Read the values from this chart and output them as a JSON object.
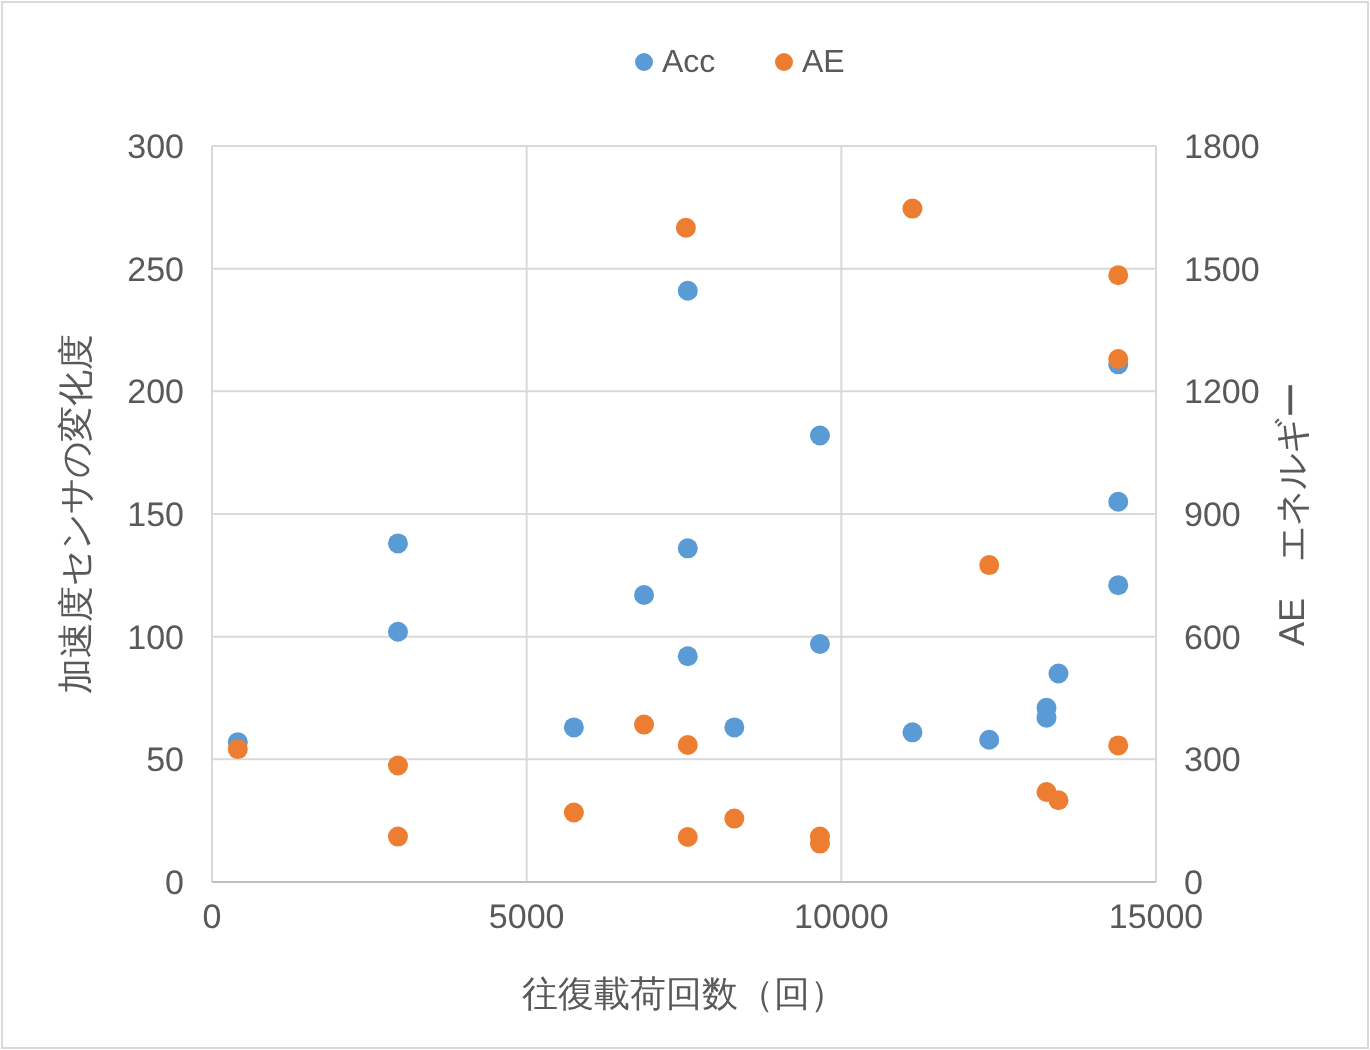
{
  "chart_data": {
    "type": "scatter",
    "xlabel": "往復載荷回数（回）",
    "ylabel": "加速度センサの変化度",
    "y2label": "AE　エネルギー",
    "xlim": [
      0,
      15000
    ],
    "xticks": [
      0,
      5000,
      10000,
      15000
    ],
    "ylim": [
      0,
      300
    ],
    "yticks": [
      0,
      50,
      100,
      150,
      200,
      250,
      300
    ],
    "y2lim": [
      0,
      1800
    ],
    "y2ticks": [
      0,
      300,
      600,
      900,
      1200,
      1500,
      1800
    ],
    "grid": true,
    "legend": "top",
    "marker": "circle",
    "series": [
      {
        "name": "Acc",
        "color": "#5b9bd5",
        "x": [
          410,
          2955,
          2955,
          5750,
          6865,
          7560,
          7560,
          7560,
          8300,
          9660,
          9660,
          11130,
          12350,
          13260,
          13260,
          13450,
          14400,
          14400,
          14400
        ],
        "values": [
          57,
          102,
          138,
          63,
          117,
          241,
          136,
          92,
          63,
          182,
          97,
          61,
          58,
          71,
          67,
          85,
          211,
          155,
          121
        ]
      },
      {
        "name": "AE",
        "color": "#ed7d31",
        "axis": "y2",
        "x": [
          410,
          2955,
          2955,
          5750,
          6865,
          7530,
          7560,
          7560,
          8300,
          9660,
          9660,
          11130,
          12350,
          13260,
          13450,
          14400,
          14400,
          14400
        ],
        "values": [
          325,
          285,
          111,
          170,
          385,
          1600,
          335,
          110,
          155,
          111,
          94,
          1647,
          775,
          220,
          200,
          1484,
          1279,
          334
        ]
      }
    ]
  }
}
